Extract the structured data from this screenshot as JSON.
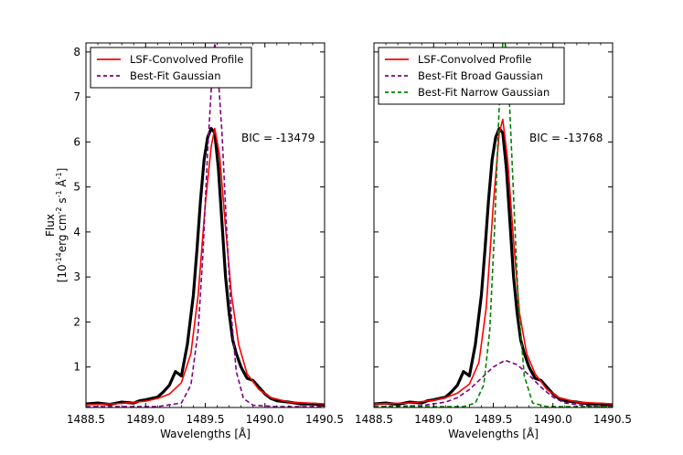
{
  "chart_data": [
    {
      "type": "line",
      "panel": "left",
      "xlabel": "Wavelengths [Å]",
      "ylabel": "Flux",
      "ylabel_units": "[10^-14 erg cm^-2 s^-1 Å^-1]",
      "xlim": [
        1488.5,
        1490.5
      ],
      "ylim": [
        0.1,
        8.2
      ],
      "xticks": [
        "1488.5",
        "1489.0",
        "1489.5",
        "1490.0",
        "1490.5"
      ],
      "yticks": [
        "1",
        "2",
        "3",
        "4",
        "5",
        "6",
        "7",
        "8"
      ],
      "annotation": "BIC = -13479",
      "legend": [
        "LSF-Convolved Profile",
        "Best-Fit Gaussian"
      ],
      "series": [
        {
          "name": "Observed Flux",
          "color": "#000000",
          "style": "solid-thick",
          "x": [
            1488.5,
            1488.6,
            1488.7,
            1488.8,
            1488.9,
            1488.95,
            1489.0,
            1489.05,
            1489.1,
            1489.15,
            1489.2,
            1489.25,
            1489.3,
            1489.35,
            1489.4,
            1489.43,
            1489.46,
            1489.49,
            1489.52,
            1489.55,
            1489.58,
            1489.61,
            1489.64,
            1489.67,
            1489.7,
            1489.73,
            1489.76,
            1489.8,
            1489.85,
            1489.9,
            1489.95,
            1490.0,
            1490.05,
            1490.1,
            1490.2,
            1490.3,
            1490.4,
            1490.5
          ],
          "y": [
            0.18,
            0.2,
            0.17,
            0.22,
            0.2,
            0.25,
            0.27,
            0.3,
            0.33,
            0.45,
            0.6,
            0.9,
            0.8,
            1.5,
            2.6,
            3.6,
            4.7,
            5.6,
            6.1,
            6.3,
            6.2,
            5.4,
            4.2,
            3.0,
            2.2,
            1.6,
            1.3,
            1.0,
            0.75,
            0.7,
            0.55,
            0.4,
            0.3,
            0.25,
            0.22,
            0.18,
            0.18,
            0.15
          ]
        },
        {
          "name": "LSF-Convolved Profile",
          "color": "#ff0000",
          "style": "solid",
          "x": [
            1488.5,
            1488.8,
            1489.0,
            1489.1,
            1489.2,
            1489.3,
            1489.38,
            1489.44,
            1489.5,
            1489.55,
            1489.58,
            1489.62,
            1489.67,
            1489.72,
            1489.78,
            1489.85,
            1489.95,
            1490.05,
            1490.2,
            1490.5
          ],
          "y": [
            0.16,
            0.19,
            0.24,
            0.3,
            0.4,
            0.65,
            1.3,
            2.6,
            4.6,
            5.9,
            6.3,
            5.7,
            4.1,
            2.6,
            1.5,
            0.85,
            0.5,
            0.32,
            0.22,
            0.18
          ]
        },
        {
          "name": "Best-Fit Gaussian",
          "color": "#800080",
          "style": "dashed",
          "x": [
            1488.5,
            1489.1,
            1489.3,
            1489.38,
            1489.44,
            1489.48,
            1489.52,
            1489.56,
            1489.58,
            1489.6,
            1489.64,
            1489.68,
            1489.72,
            1489.76,
            1489.82,
            1489.9,
            1490.1,
            1490.5
          ],
          "y": [
            0.12,
            0.12,
            0.2,
            0.6,
            1.8,
            3.5,
            5.8,
            7.6,
            8.2,
            7.8,
            6.2,
            4.0,
            2.1,
            0.9,
            0.3,
            0.15,
            0.12,
            0.12
          ]
        }
      ]
    },
    {
      "type": "line",
      "panel": "right",
      "xlabel": "Wavelengths [Å]",
      "xlim": [
        1488.5,
        1490.5
      ],
      "ylim": [
        0.1,
        8.2
      ],
      "xticks": [
        "1488.5",
        "1489.0",
        "1489.5",
        "1490.0",
        "1490.5"
      ],
      "annotation": "BIC = -13768",
      "legend": [
        "LSF-Convolved Profile",
        "Best-Fit Broad Gaussian",
        "Best-Fit Narrow Gaussian"
      ],
      "series": [
        {
          "name": "Observed Flux",
          "color": "#000000",
          "style": "solid-thick",
          "x": [
            1488.5,
            1488.6,
            1488.7,
            1488.8,
            1488.9,
            1488.95,
            1489.0,
            1489.05,
            1489.1,
            1489.15,
            1489.2,
            1489.25,
            1489.3,
            1489.35,
            1489.4,
            1489.43,
            1489.46,
            1489.49,
            1489.52,
            1489.55,
            1489.58,
            1489.61,
            1489.64,
            1489.67,
            1489.7,
            1489.73,
            1489.76,
            1489.8,
            1489.85,
            1489.9,
            1489.95,
            1490.0,
            1490.05,
            1490.1,
            1490.2,
            1490.3,
            1490.4,
            1490.5
          ],
          "y": [
            0.18,
            0.2,
            0.17,
            0.22,
            0.2,
            0.25,
            0.27,
            0.3,
            0.33,
            0.45,
            0.6,
            0.9,
            0.8,
            1.5,
            2.6,
            3.6,
            4.7,
            5.6,
            6.1,
            6.3,
            6.2,
            5.4,
            4.2,
            3.0,
            2.2,
            1.6,
            1.3,
            1.0,
            0.75,
            0.7,
            0.55,
            0.4,
            0.3,
            0.25,
            0.22,
            0.18,
            0.18,
            0.15
          ]
        },
        {
          "name": "LSF-Convolved Profile",
          "color": "#ff0000",
          "style": "solid",
          "x": [
            1488.5,
            1488.8,
            1489.0,
            1489.1,
            1489.2,
            1489.3,
            1489.38,
            1489.44,
            1489.5,
            1489.55,
            1489.58,
            1489.62,
            1489.67,
            1489.72,
            1489.78,
            1489.85,
            1489.95,
            1490.05,
            1490.2,
            1490.5
          ],
          "y": [
            0.18,
            0.2,
            0.26,
            0.32,
            0.42,
            0.62,
            1.1,
            2.3,
            4.6,
            6.2,
            6.5,
            5.6,
            3.8,
            2.2,
            1.3,
            0.85,
            0.5,
            0.32,
            0.22,
            0.18
          ]
        },
        {
          "name": "Best-Fit Broad Gaussian",
          "color": "#800080",
          "style": "dashed",
          "x": [
            1488.5,
            1488.9,
            1489.1,
            1489.2,
            1489.3,
            1489.4,
            1489.5,
            1489.6,
            1489.7,
            1489.8,
            1489.9,
            1490.0,
            1490.1,
            1490.3,
            1490.5
          ],
          "y": [
            0.12,
            0.14,
            0.22,
            0.32,
            0.5,
            0.75,
            1.0,
            1.15,
            1.05,
            0.82,
            0.55,
            0.33,
            0.2,
            0.13,
            0.12
          ]
        },
        {
          "name": "Best-Fit Narrow Gaussian",
          "color": "#008000",
          "style": "dashed",
          "x": [
            1488.5,
            1489.25,
            1489.35,
            1489.42,
            1489.47,
            1489.51,
            1489.55,
            1489.58,
            1489.6,
            1489.63,
            1489.67,
            1489.71,
            1489.76,
            1489.83,
            1489.95,
            1490.5
          ],
          "y": [
            0.12,
            0.12,
            0.2,
            0.6,
            1.8,
            4.0,
            6.8,
            8.2,
            8.2,
            7.2,
            4.8,
            2.4,
            0.8,
            0.2,
            0.12,
            0.12
          ]
        }
      ]
    }
  ],
  "colors": {
    "observed": "#000000",
    "lsf": "#ff0000",
    "gaussian": "#800080",
    "narrow": "#008000"
  }
}
